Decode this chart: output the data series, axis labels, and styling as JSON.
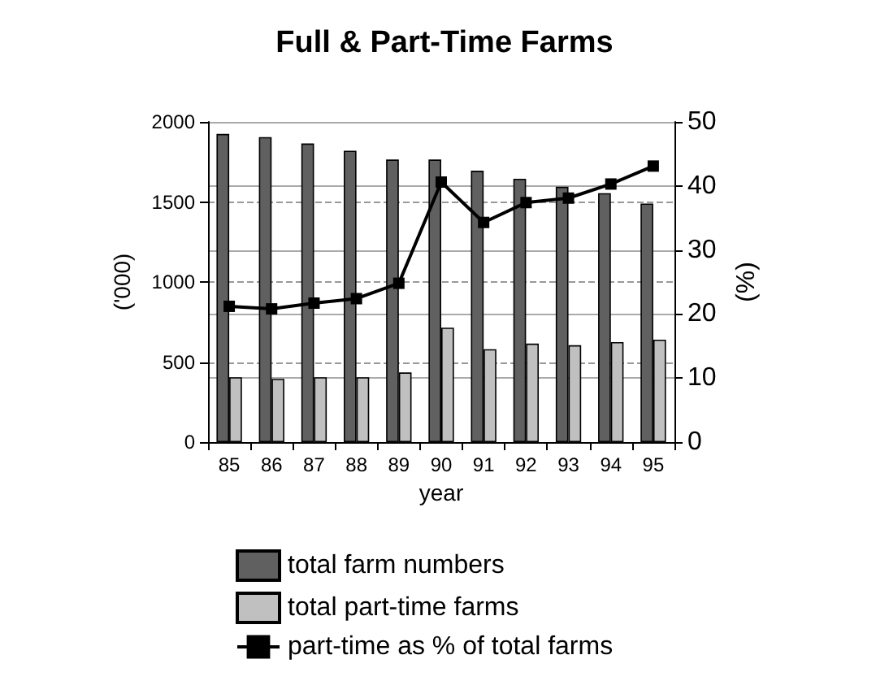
{
  "chart_data": {
    "type": "bar",
    "title": "Full & Part-Time Farms",
    "xlabel": "year",
    "ylabel": "('000)",
    "y2label": "(%)",
    "categories": [
      "85",
      "86",
      "87",
      "88",
      "89",
      "90",
      "91",
      "92",
      "93",
      "94",
      "95"
    ],
    "series": [
      {
        "name": "total farm numbers",
        "color": "#606060",
        "values": [
          1925,
          1905,
          1865,
          1820,
          1765,
          1765,
          1695,
          1645,
          1595,
          1555,
          1490
        ]
      },
      {
        "name": "total part-time farms",
        "color": "#c0c0c0",
        "values": [
          405,
          395,
          405,
          405,
          435,
          715,
          580,
          615,
          605,
          625,
          640
        ]
      },
      {
        "name": "part-time as % of total farms",
        "type": "line",
        "axis": "y2",
        "color": "#000000",
        "marker": "square",
        "values": [
          21.2,
          20.8,
          21.7,
          22.4,
          24.8,
          40.6,
          34.3,
          37.4,
          38.1,
          40.3,
          43.1
        ]
      }
    ],
    "ylim": [
      0,
      2000
    ],
    "yticks": [
      0,
      500,
      1000,
      1500,
      2000
    ],
    "y2lim": [
      0,
      50
    ],
    "y2ticks": [
      0,
      10,
      20,
      30,
      40,
      50
    ],
    "grid": true,
    "legend": "bottom"
  }
}
